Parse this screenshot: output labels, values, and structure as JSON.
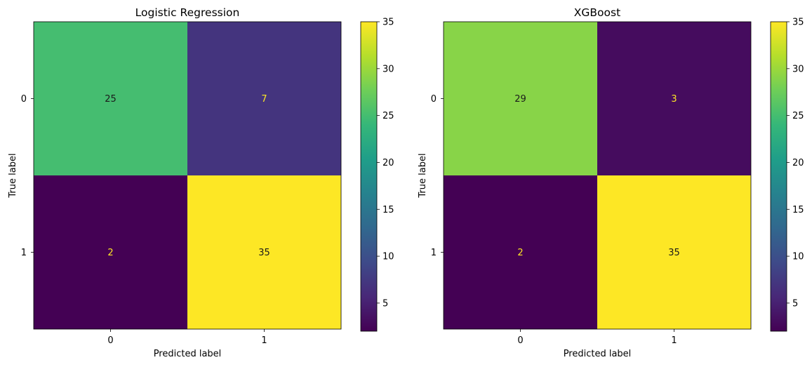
{
  "chart_data": [
    {
      "type": "heatmap",
      "title": "Logistic Regression",
      "xlabel": "Predicted label",
      "ylabel": "True label",
      "x_categories": [
        "0",
        "1"
      ],
      "y_categories": [
        "0",
        "1"
      ],
      "values": [
        [
          25,
          7
        ],
        [
          2,
          35
        ]
      ],
      "colormap": "viridis",
      "colorbar": {
        "range": [
          2,
          35
        ],
        "ticks": [
          "5",
          "10",
          "15",
          "20",
          "25",
          "30",
          "35"
        ]
      }
    },
    {
      "type": "heatmap",
      "title": "XGBoost",
      "xlabel": "Predicted label",
      "ylabel": "True label",
      "x_categories": [
        "0",
        "1"
      ],
      "y_categories": [
        "0",
        "1"
      ],
      "values": [
        [
          29,
          3
        ],
        [
          2,
          35
        ]
      ],
      "colormap": "viridis",
      "colorbar": {
        "range": [
          2,
          35
        ],
        "ticks": [
          "5",
          "10",
          "15",
          "20",
          "25",
          "30",
          "35"
        ]
      }
    }
  ],
  "colors": {
    "viridis_stops": [
      "#440154",
      "#482878",
      "#3e4a89",
      "#31688e",
      "#26828e",
      "#1f9e89",
      "#35b779",
      "#6ece58",
      "#b5de2b",
      "#fde725"
    ],
    "text_on_dark": "#fde725",
    "text_on_light": "#1a1a1a"
  }
}
